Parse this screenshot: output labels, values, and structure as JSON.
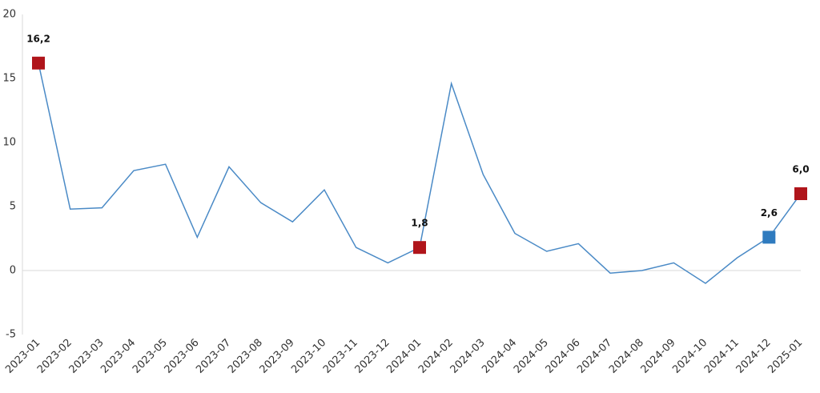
{
  "chart_data": {
    "type": "line",
    "x": [
      "2023-01",
      "2023-02",
      "2023-03",
      "2023-04",
      "2023-05",
      "2023-06",
      "2023-07",
      "2023-08",
      "2023-09",
      "2023-10",
      "2023-11",
      "2023-12",
      "2024-01",
      "2024-02",
      "2024-03",
      "2024-04",
      "2024-05",
      "2024-06",
      "2024-07",
      "2024-08",
      "2024-09",
      "2024-10",
      "2024-11",
      "2024-12",
      "2025-01"
    ],
    "series": [
      {
        "color": "#4a8ac6",
        "values": [
          16.2,
          4.8,
          4.9,
          7.8,
          8.3,
          2.6,
          8.1,
          5.3,
          3.8,
          6.3,
          1.8,
          0.6,
          1.8,
          14.6,
          7.5,
          2.9,
          1.5,
          2.1,
          -0.2,
          0.0,
          0.6,
          -1.0,
          1.0,
          2.6,
          6.0
        ],
        "value_labels": [
          "16,2",
          null,
          null,
          null,
          null,
          null,
          null,
          null,
          null,
          null,
          null,
          null,
          "1,8",
          null,
          null,
          null,
          null,
          null,
          null,
          null,
          null,
          null,
          null,
          "2,6",
          "6,0"
        ],
        "marker_colors": [
          "#b0151b",
          null,
          null,
          null,
          null,
          null,
          null,
          null,
          null,
          null,
          null,
          null,
          "#b0151b",
          null,
          null,
          null,
          null,
          null,
          null,
          null,
          null,
          null,
          null,
          "#2f7bbf",
          "#b0151b"
        ]
      }
    ],
    "ylim": [
      -5,
      20
    ],
    "yticks": [
      20,
      15,
      10,
      5,
      0,
      -5
    ]
  }
}
